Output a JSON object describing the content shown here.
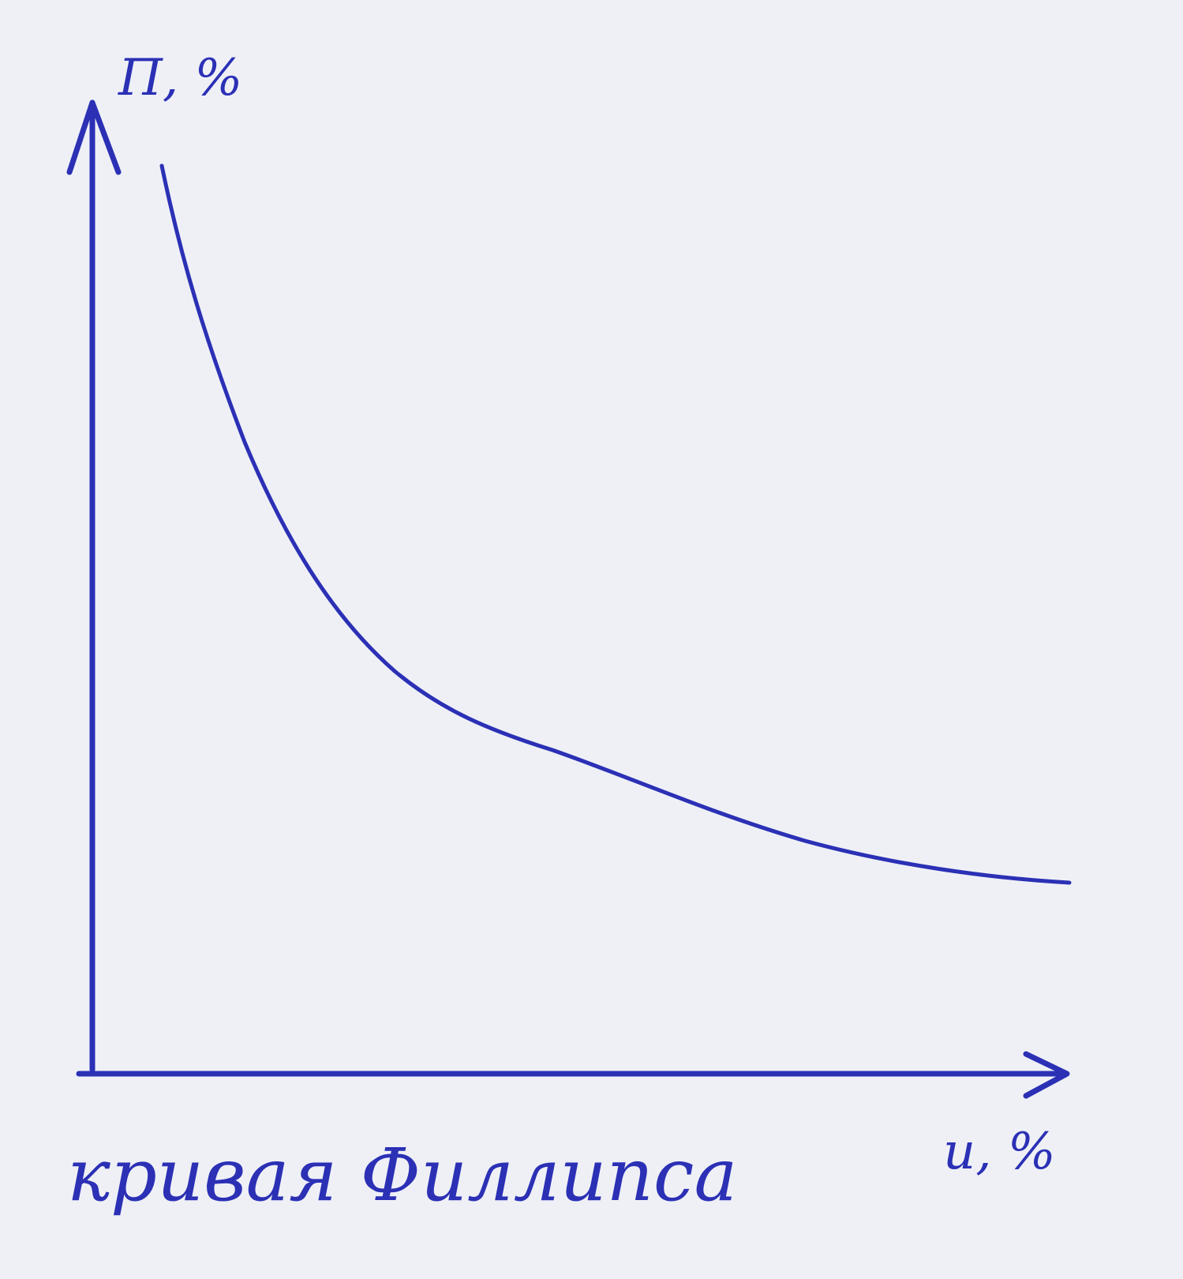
{
  "axes": {
    "y_label": "П, %",
    "x_label": "и, %"
  },
  "caption": "кривая Филлипса"
}
